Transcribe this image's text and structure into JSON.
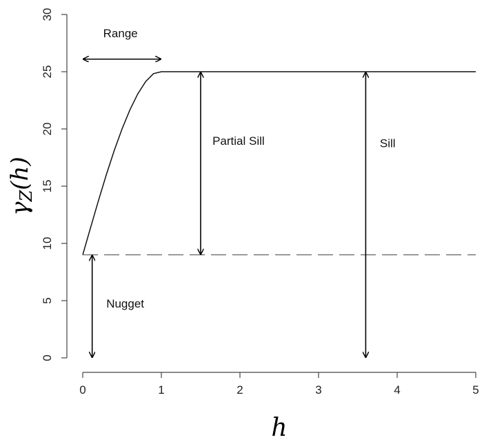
{
  "chart_data": {
    "type": "line",
    "title": "",
    "xlabel": "h",
    "ylabel": "γZ(h)",
    "ylabel_main": "γ",
    "ylabel_sub": "Z",
    "ylabel_arg": "(h)",
    "xlim": [
      0,
      5
    ],
    "ylim": [
      0,
      30
    ],
    "xticks": [
      0,
      1,
      2,
      3,
      4,
      5
    ],
    "yticks": [
      0,
      5,
      10,
      15,
      20,
      25,
      30
    ],
    "grid": false,
    "nugget": 9,
    "sill": 25,
    "range": 1,
    "model": "spherical",
    "series": [
      {
        "style": "solid",
        "x": [
          0,
          0.1,
          0.2,
          0.3,
          0.4,
          0.5,
          0.6,
          0.7,
          0.8,
          0.9,
          1.0,
          5.0
        ],
        "y": [
          9,
          11.39,
          13.74,
          16.0,
          18.1,
          20.0,
          21.67,
          23.06,
          24.14,
          24.83,
          25,
          25
        ]
      },
      {
        "style": "dashed",
        "x": [
          0,
          5
        ],
        "y": [
          9,
          9
        ]
      }
    ],
    "annotations": [
      {
        "text": "Range",
        "arrow_from": [
          0,
          26.1
        ],
        "arrow_to": [
          1,
          26.1
        ],
        "text_at": [
          0.48,
          28.0
        ]
      },
      {
        "text": "Partial Sill",
        "arrow_from": [
          1.5,
          25
        ],
        "arrow_to": [
          1.5,
          9
        ],
        "text_at": [
          1.65,
          18.6
        ]
      },
      {
        "text": "Sill",
        "arrow_from": [
          3.6,
          25
        ],
        "arrow_to": [
          3.6,
          0
        ],
        "text_at": [
          3.78,
          18.4
        ]
      },
      {
        "text": "Nugget",
        "arrow_from": [
          0.12,
          9
        ],
        "arrow_to": [
          0.12,
          0
        ],
        "text_at": [
          0.3,
          4.4
        ]
      }
    ]
  }
}
